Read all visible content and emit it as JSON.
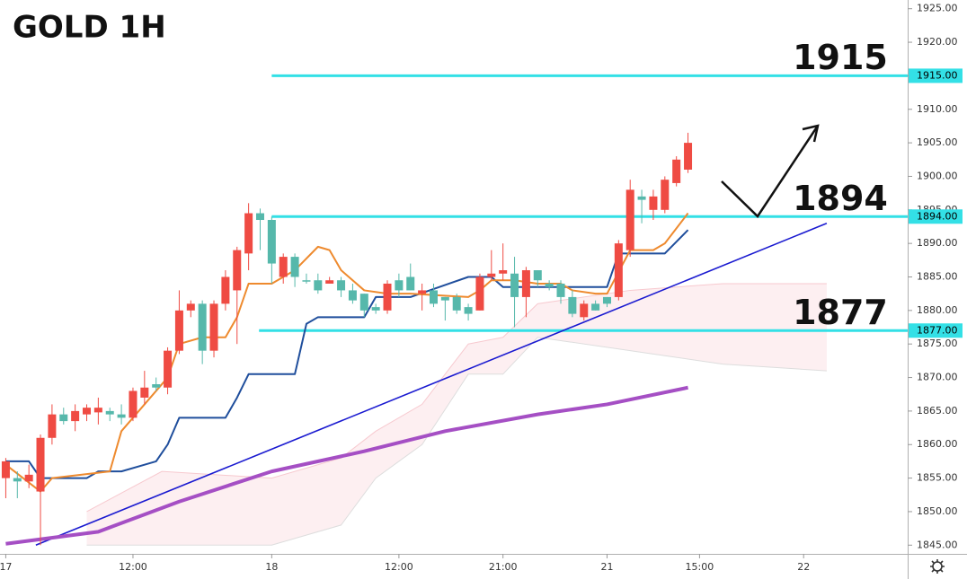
{
  "chart_data": {
    "type": "candlestick",
    "title": "GOLD 1H",
    "x": [
      0,
      1,
      2,
      3,
      4,
      5,
      6,
      7,
      8,
      9,
      10,
      11,
      12,
      13,
      14,
      15,
      16,
      17,
      18,
      19,
      20,
      21,
      22,
      23,
      24,
      25,
      26,
      27,
      28,
      29,
      30,
      31,
      32,
      33,
      34,
      35,
      36,
      37,
      38,
      39,
      40,
      41,
      42,
      43,
      44,
      45,
      46,
      47,
      48,
      49,
      50,
      51,
      52,
      53,
      54,
      55,
      56,
      57,
      58,
      59
    ],
    "open": [
      1855,
      1855,
      1854.5,
      1853,
      1861,
      1864.5,
      1863.5,
      1864.5,
      1864.8,
      1865,
      1864.5,
      1864,
      1867,
      1869,
      1868.5,
      1874,
      1880,
      1881,
      1874,
      1881,
      1883,
      1888.5,
      1894.5,
      1893.5,
      1885,
      1888,
      1884.5,
      1884.5,
      1884,
      1884.5,
      1883,
      1882.5,
      1880.5,
      1880,
      1884.5,
      1885,
      1882.5,
      1883,
      1882,
      1882,
      1880.5,
      1880,
      1885,
      1885.5,
      1885.5,
      1882,
      1886,
      1884,
      1884,
      1882,
      1879,
      1881,
      1882,
      1882,
      1889,
      1897,
      1895,
      1895,
      1899,
      1901
    ],
    "high": [
      1858,
      1856,
      1857,
      1861.5,
      1866,
      1865.5,
      1866,
      1866,
      1867,
      1865.5,
      1866,
      1868.5,
      1871,
      1870,
      1874.5,
      1883,
      1881.5,
      1881.5,
      1881.5,
      1886,
      1889.5,
      1896,
      1895.2,
      1894,
      1888.5,
      1888.5,
      1885.5,
      1885.5,
      1885,
      1885,
      1884,
      1882.5,
      1881,
      1884.5,
      1885.5,
      1887,
      1884,
      1884,
      1882,
      1882.5,
      1881,
      1885.5,
      1889,
      1890,
      1888,
      1886.5,
      1886,
      1884.5,
      1884.5,
      1883,
      1881.5,
      1881.5,
      1882,
      1890.5,
      1899.5,
      1898,
      1898,
      1900,
      1903,
      1906.5
    ],
    "low": [
      1852,
      1852,
      1853.5,
      1845,
      1860,
      1863,
      1862,
      1863.5,
      1863,
      1863.5,
      1863,
      1863.5,
      1866,
      1868,
      1867.5,
      1873.5,
      1879,
      1872,
      1873,
      1880,
      1875,
      1886,
      1889,
      1884,
      1884,
      1883.5,
      1884,
      1882.5,
      1884,
      1882,
      1881,
      1879,
      1879.5,
      1879.5,
      1882,
      1883,
      1880,
      1880.5,
      1878.5,
      1879.5,
      1878.5,
      1880,
      1884.5,
      1884.5,
      1877.5,
      1879,
      1883.5,
      1883,
      1881,
      1879,
      1878.5,
      1880,
      1880.5,
      1881.5,
      1888,
      1893,
      1893.5,
      1894.5,
      1898.5,
      1900.5
    ],
    "close": [
      1857.5,
      1854.5,
      1855.5,
      1861,
      1864.5,
      1863.5,
      1865,
      1865.5,
      1865.5,
      1864.5,
      1864,
      1868,
      1868.5,
      1868.5,
      1874,
      1880,
      1881,
      1874,
      1881,
      1885,
      1889,
      1894.5,
      1893.5,
      1887,
      1888,
      1885,
      1884.3,
      1883,
      1884.5,
      1883,
      1881.5,
      1880,
      1880,
      1884,
      1883,
      1883,
      1883,
      1881,
      1881.5,
      1880,
      1879.5,
      1885,
      1885.5,
      1886,
      1882,
      1886,
      1884.5,
      1883.5,
      1882,
      1879.5,
      1881,
      1880,
      1881,
      1890,
      1898,
      1896.5,
      1897,
      1899.5,
      1902.5,
      1905
    ],
    "up_color": "#ef4b43",
    "down_color": "#56b8ab",
    "xlim": [
      -0.5,
      78
    ],
    "xticks": [
      {
        "value": 0,
        "label": "17"
      },
      {
        "value": 11,
        "label": "12:00"
      },
      {
        "value": 23,
        "label": "18"
      },
      {
        "value": 34,
        "label": "12:00"
      },
      {
        "value": 43,
        "label": "21:00"
      },
      {
        "value": 52,
        "label": "21"
      },
      {
        "value": 60,
        "label": "15:00"
      },
      {
        "value": 69,
        "label": "22"
      }
    ],
    "ylim": [
      1843.7,
      1926.3
    ],
    "yticks": [
      {
        "value": 1845,
        "label": "1845.00"
      },
      {
        "value": 1850,
        "label": "1850.00"
      },
      {
        "value": 1855,
        "label": "1855.00"
      },
      {
        "value": 1860,
        "label": "1860.00"
      },
      {
        "value": 1865,
        "label": "1865.00"
      },
      {
        "value": 1870,
        "label": "1870.00"
      },
      {
        "value": 1875,
        "label": "1875.00"
      },
      {
        "value": 1880,
        "label": "1880.00"
      },
      {
        "value": 1885,
        "label": "1885.00"
      },
      {
        "value": 1890,
        "label": "1890.00"
      },
      {
        "value": 1895,
        "label": "1895.00"
      },
      {
        "value": 1900,
        "label": "1900.00"
      },
      {
        "value": 1905,
        "label": "1905.00"
      },
      {
        "value": 1910,
        "label": "1910.00"
      },
      {
        "value": 1915,
        "label": "1915.00"
      },
      {
        "value": 1920,
        "label": "1920.00"
      },
      {
        "value": 1925,
        "label": "1925.00"
      }
    ],
    "cloud": {
      "color": "#f7c9cf",
      "x": [
        7,
        13.5,
        23,
        29,
        32,
        36,
        40,
        43,
        46,
        54,
        62,
        71
      ],
      "upper": [
        1850,
        1856,
        1855,
        1858,
        1862,
        1866,
        1875,
        1876,
        1881,
        1883,
        1884,
        1884
      ],
      "lower": [
        1845,
        1845,
        1845,
        1848,
        1855,
        1860,
        1870.5,
        1870.5,
        1876,
        1874,
        1872,
        1871
      ]
    },
    "lines": [
      {
        "color": "#a54fc4",
        "width": 4,
        "x": [
          0,
          8,
          15,
          23,
          31,
          38,
          46,
          52,
          59
        ],
        "values": [
          1845.2,
          1847,
          1851.5,
          1856,
          1859,
          1862,
          1864.5,
          1866,
          1868.5
        ]
      },
      {
        "color": "#1f4e9c",
        "width": 2,
        "x": [
          0,
          2,
          3,
          7,
          8,
          10,
          12,
          13,
          14,
          15,
          19,
          20,
          21,
          25,
          26,
          27,
          31,
          32,
          35,
          40,
          42,
          43,
          52,
          53,
          57,
          59
        ],
        "values": [
          1857.5,
          1857.5,
          1855,
          1855,
          1856,
          1856,
          1857,
          1857.5,
          1860,
          1864,
          1864,
          1867,
          1870.5,
          1870.5,
          1878,
          1879,
          1879,
          1882,
          1882,
          1885,
          1885,
          1883.5,
          1883.5,
          1888.5,
          1888.5,
          1892
        ]
      },
      {
        "color": "#ee8a2e",
        "width": 2,
        "x": [
          0,
          3,
          4,
          9,
          10,
          12,
          14,
          15,
          17,
          19,
          20,
          21,
          23,
          25,
          27,
          28,
          29,
          31,
          33,
          35,
          40,
          41,
          42,
          44,
          46,
          48,
          49,
          51,
          52,
          54,
          56,
          57,
          59
        ],
        "values": [
          1857,
          1853,
          1855,
          1856,
          1862,
          1866,
          1870,
          1875,
          1876,
          1876,
          1879,
          1884,
          1884,
          1886,
          1889.5,
          1889,
          1886,
          1883,
          1882.5,
          1882.5,
          1882,
          1883,
          1884.5,
          1884.5,
          1884,
          1884,
          1883,
          1882.5,
          1882.5,
          1889,
          1889,
          1890,
          1894.5
        ]
      }
    ],
    "trendline": {
      "color": "#1a1ad0",
      "x": [
        2.6,
        71
      ],
      "values": [
        1845,
        1893
      ]
    },
    "level_color": "#33e0e6",
    "levels": [
      {
        "value": 1915,
        "label": "1915",
        "tag": "1915.00",
        "start": 23
      },
      {
        "value": 1894,
        "label": "1894",
        "tag": "1894.00",
        "start": 23
      },
      {
        "value": 1877,
        "label": "1877",
        "tag": "1877.00",
        "start": 21.9
      }
    ]
  }
}
